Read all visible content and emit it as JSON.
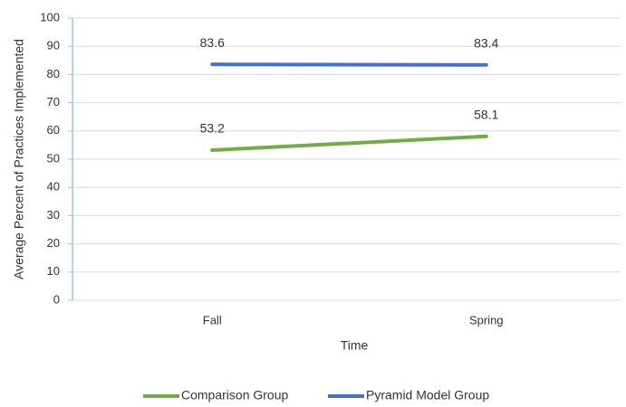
{
  "chart_data": {
    "type": "line",
    "categories": [
      "Fall",
      "Spring"
    ],
    "series": [
      {
        "name": "Comparison Group",
        "color": "#70ad47",
        "values": [
          53.2,
          58.1
        ]
      },
      {
        "name": "Pyramid Model Group",
        "color": "#4472c4",
        "values": [
          83.6,
          83.4
        ]
      }
    ],
    "xlabel": "Time",
    "ylabel": "Average Percent of Practices Implemented",
    "ylim": [
      0,
      100
    ],
    "yticks": [
      0,
      10,
      20,
      30,
      40,
      50,
      60,
      70,
      80,
      90,
      100
    ],
    "grid": true,
    "legend": "bottom"
  }
}
